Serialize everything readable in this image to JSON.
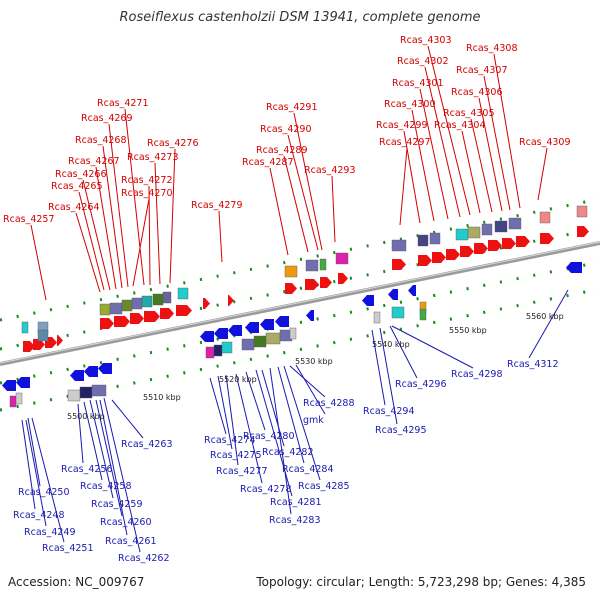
{
  "header": {
    "title": "Roseiflexus castenholzii DSM 13941, complete genome"
  },
  "footer": {
    "accession": "Accession: NC_009767",
    "topology": "Topology: circular; Length: 5,723,298 bp; Genes: 4,385"
  },
  "colors": {
    "top_strand": "#ee1111",
    "bottom_strand": "#1111dd",
    "backbone": "#888888",
    "tick": "#1a8a1a"
  },
  "scale_labels": [
    "5500 kbp",
    "5510 kbp",
    "5520 kbp",
    "5530 kbp",
    "5540 kbp",
    "5550 kbp",
    "5560 kbp"
  ],
  "top_genes": [
    "Rcas_4257",
    "Rcas_4264",
    "Rcas_4265",
    "Rcas_4266",
    "Rcas_4267",
    "Rcas_4268",
    "Rcas_4269",
    "Rcas_4270",
    "Rcas_4271",
    "Rcas_4272",
    "Rcas_4273",
    "Rcas_4276",
    "Rcas_4279",
    "Rcas_4287",
    "Rcas_4289",
    "Rcas_4290",
    "Rcas_4291",
    "Rcas_4293",
    "Rcas_4297",
    "Rcas_4299",
    "Rcas_4300",
    "Rcas_4301",
    "Rcas_4302",
    "Rcas_4303",
    "Rcas_4304",
    "Rcas_4305",
    "Rcas_4306",
    "Rcas_4307",
    "Rcas_4308",
    "Rcas_4309"
  ],
  "bottom_genes": [
    "Rcas_4248",
    "Rcas_4249",
    "Rcas_4250",
    "Rcas_4251",
    "Rcas_4256",
    "Rcas_4258",
    "Rcas_4259",
    "Rcas_4260",
    "Rcas_4261",
    "Rcas_4262",
    "Rcas_4263",
    "Rcas_4274",
    "Rcas_4275",
    "Rcas_4277",
    "Rcas_4278",
    "Rcas_4280",
    "Rcas_4281",
    "Rcas_4282",
    "Rcas_4283",
    "Rcas_4284",
    "Rcas_4285",
    "Rcas_4288",
    "gmk",
    "Rcas_4294",
    "Rcas_4295",
    "Rcas_4296",
    "Rcas_4298",
    "Rcas_4312"
  ]
}
